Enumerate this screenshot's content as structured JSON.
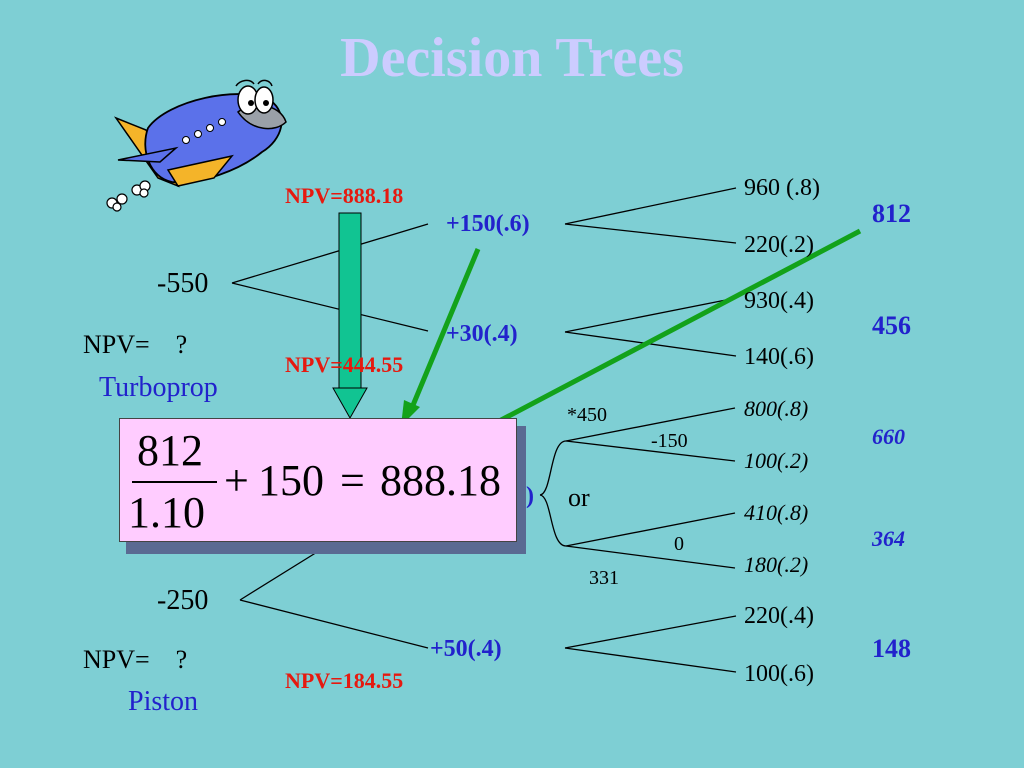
{
  "title": "Decision Trees",
  "colors": {
    "background": "#7ecfd4",
    "title": "#ccccff",
    "npv_label": "#e6190f",
    "branch_blue": "#2222cc",
    "arrow_green": "#13a21a",
    "arrow_teal": "#11c492",
    "formula_box": "#ffccff"
  },
  "icons": {
    "cartoon_plane": "cartoon-airplane-icon"
  },
  "turboprop": {
    "cost": "-550",
    "npv_prompt": "NPV=    ?",
    "label": "Turboprop",
    "npv_top": "NPV=888.18",
    "npv_mid": "NPV=444.55",
    "branch_high": "+150(.6)",
    "branch_low": "+30(.4)",
    "high_outcomes": [
      "960 (.8)",
      "220(.2)"
    ],
    "low_outcomes": [
      "930(.4)",
      "140(.6)"
    ],
    "expected_high": "812",
    "expected_low": "456"
  },
  "piston": {
    "cost": "-250",
    "npv_prompt": "NPV=    ?",
    "label": "Piston",
    "npv_bottom": "NPV=184.55",
    "branch_high_tail": ")",
    "branch_low": "+50(.4)",
    "choice_a_value": "*450",
    "choice_a_cost": "-150",
    "choice_or": "or",
    "choice_b_cost": "0",
    "choice_b_value": "331",
    "choice_a_outcomes": [
      "800(.8)",
      "100(.2)"
    ],
    "choice_b_outcomes": [
      "410(.8)",
      "180(.2)"
    ],
    "low_outcomes": [
      "220(.4)",
      "100(.6)"
    ],
    "expected_a": "660",
    "expected_b": "364",
    "expected_low": "148"
  },
  "formula": {
    "numerator": "812",
    "denominator": "1.10",
    "plus": "+",
    "addend": "150",
    "equals": "=",
    "result": "888.18"
  }
}
